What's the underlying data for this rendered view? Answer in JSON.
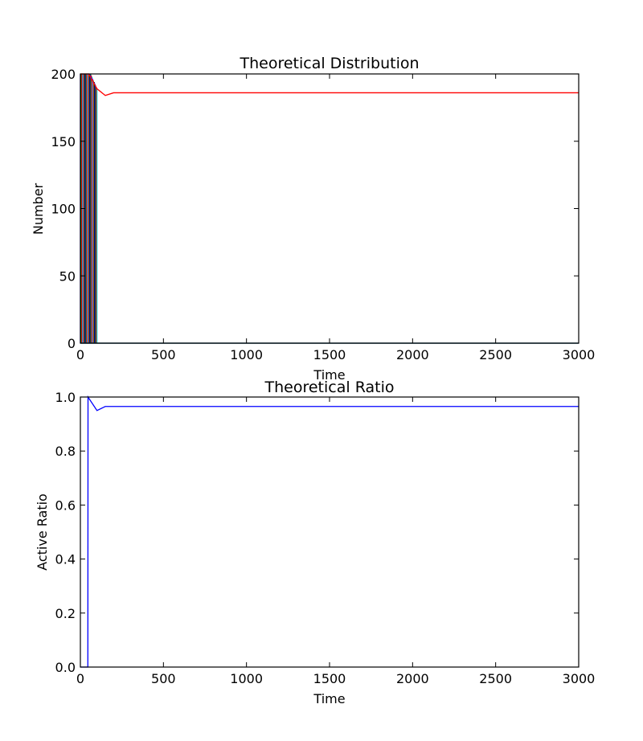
{
  "chart_data": [
    {
      "type": "line",
      "title": "Theoretical Distribution",
      "xlabel": "Time",
      "ylabel": "Number",
      "xlim": [
        0,
        3000
      ],
      "ylim": [
        0,
        200
      ],
      "xticks": [
        0,
        500,
        1000,
        1500,
        2000,
        2500,
        3000
      ],
      "yticks": [
        0,
        50,
        100,
        150,
        200
      ],
      "grid": false,
      "series": [
        {
          "color": "#ff0000",
          "x": [
            0,
            50,
            100,
            150,
            200,
            3000
          ],
          "values": [
            200,
            200,
            189,
            184,
            186,
            186
          ]
        },
        {
          "color": "#0000ff",
          "x": [
            0,
            3000
          ],
          "values": [
            0,
            0
          ]
        },
        {
          "color": "#008000",
          "x": [
            0,
            3000
          ],
          "values": [
            0,
            0
          ]
        }
      ],
      "dense_band": {
        "description": "many overlapping colored lines dropping from 200 to 0 between t=0 and t=100",
        "x_range": [
          0,
          100
        ],
        "from": 200,
        "to": 0,
        "colors": [
          "#0000ff",
          "#008000",
          "#ff0000",
          "#00bfbf",
          "#bf00bf",
          "#bfbf00",
          "#000000"
        ]
      }
    },
    {
      "type": "line",
      "title": "Theoretical Ratio",
      "xlabel": "Time",
      "ylabel": "Active Ratio",
      "xlim": [
        0,
        3000
      ],
      "ylim": [
        0.0,
        1.0
      ],
      "xticks": [
        0,
        500,
        1000,
        1500,
        2000,
        2500,
        3000
      ],
      "yticks": [
        0.0,
        0.2,
        0.4,
        0.6,
        0.8,
        1.0
      ],
      "ytick_labels": [
        "0.0",
        "0.2",
        "0.4",
        "0.6",
        "0.8",
        "1.0"
      ],
      "grid": false,
      "series": [
        {
          "color": "#0000ff",
          "x": [
            0,
            45,
            46,
            100,
            150,
            3000
          ],
          "values": [
            0.0,
            0.0,
            1.0,
            0.95,
            0.965,
            0.965
          ]
        }
      ]
    }
  ]
}
